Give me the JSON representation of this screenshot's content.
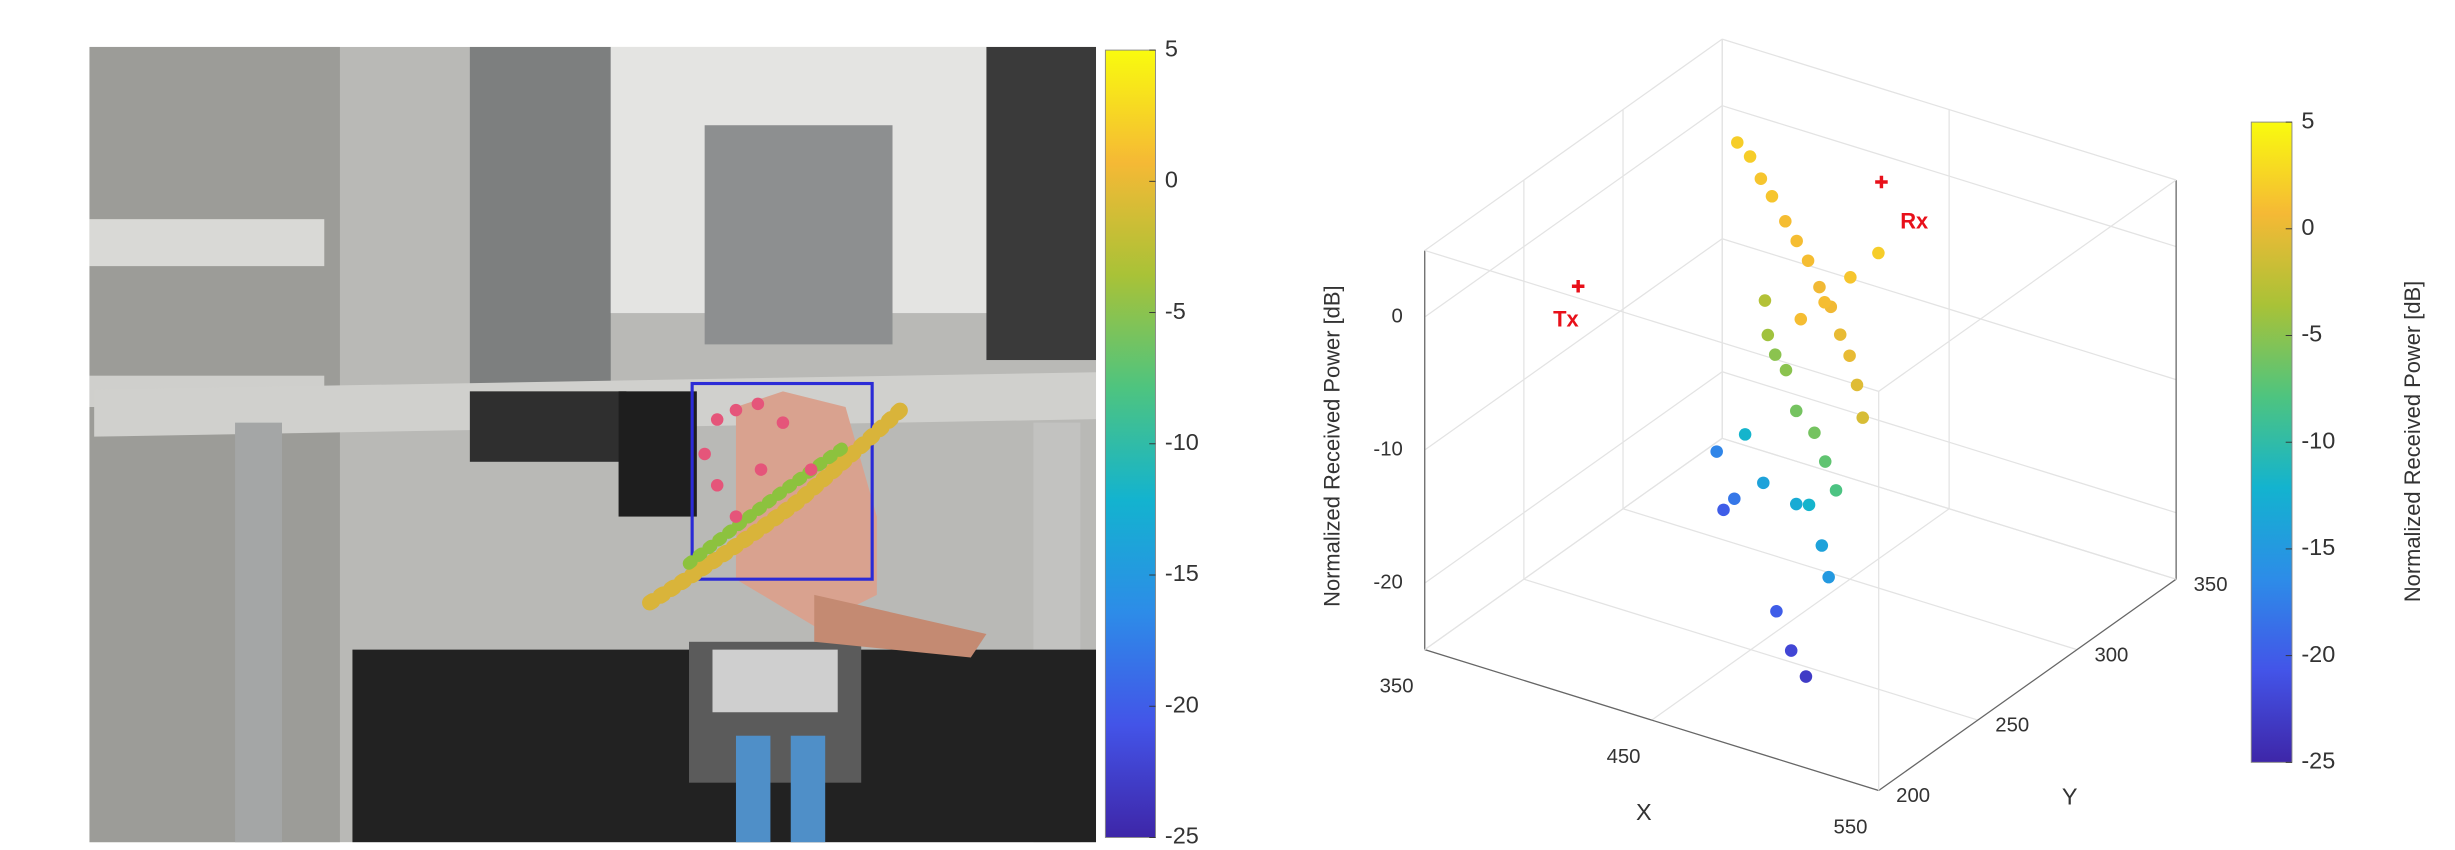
{
  "chart_data": [
    {
      "type": "image",
      "colorbar": {
        "lim": [
          -25,
          5
        ],
        "ticks": [
          5,
          0,
          -5,
          -10,
          -15,
          -20,
          -25
        ]
      }
    },
    {
      "type": "scatter3d",
      "zlabel": "Normalized Received Power [dB]",
      "xlabel": "X",
      "ylabel": "Y",
      "xlim": [
        350,
        550
      ],
      "xticks": [
        350,
        450,
        550
      ],
      "ylim": [
        200,
        350
      ],
      "yticks": [
        200,
        250,
        300,
        350
      ],
      "zlim": [
        -25,
        5
      ],
      "zticks": [
        -20,
        -10,
        0
      ],
      "grid": true,
      "x": [
        382,
        392,
        402,
        413,
        425,
        437,
        449,
        461,
        473,
        485,
        497,
        509,
        522,
        472,
        472,
        472,
        473,
        440,
        455,
        470,
        485,
        495,
        505,
        430,
        445,
        430,
        470,
        490,
        500,
        480,
        445,
        410,
        420,
        470,
        480,
        490,
        400
      ],
      "y": [
        321,
        316,
        310,
        303,
        296,
        288,
        280,
        272,
        264,
        255,
        246,
        236,
        224,
        250,
        262,
        275,
        288,
        270,
        262,
        250,
        242,
        236,
        230,
        280,
        268,
        270,
        250,
        240,
        232,
        245,
        262,
        282,
        276,
        240,
        236,
        232,
        290
      ],
      "z": [
        2,
        2,
        1.5,
        1.5,
        1,
        1,
        1,
        0.5,
        0.5,
        0,
        0,
        -0.5,
        -1,
        1,
        1,
        1.5,
        2,
        -4,
        -5,
        -6,
        -6,
        -7,
        -8,
        -3,
        -5,
        -12,
        -13,
        -14,
        -15,
        -12,
        -14,
        -20,
        -18,
        -20,
        -22,
        -23,
        -17
      ],
      "colormap": [
        "#3e26a8",
        "#4354e8",
        "#2d8ce8",
        "#13b3cf",
        "#4ec47f",
        "#a9c237",
        "#f5b935",
        "#f9fb0e"
      ],
      "colorbar": {
        "label": "Normalized Received Power [dB]",
        "lim": [
          -25,
          5
        ],
        "ticks": [
          5,
          0,
          -5,
          -10,
          -15,
          -20,
          -25
        ]
      },
      "annotations": [
        {
          "text": "Tx",
          "x": 401,
          "y": 219,
          "z": 3,
          "color": "#e8101a"
        },
        {
          "text": "Rx",
          "x": 449,
          "y": 317,
          "z": 3,
          "color": "#e8101a"
        }
      ]
    }
  ]
}
